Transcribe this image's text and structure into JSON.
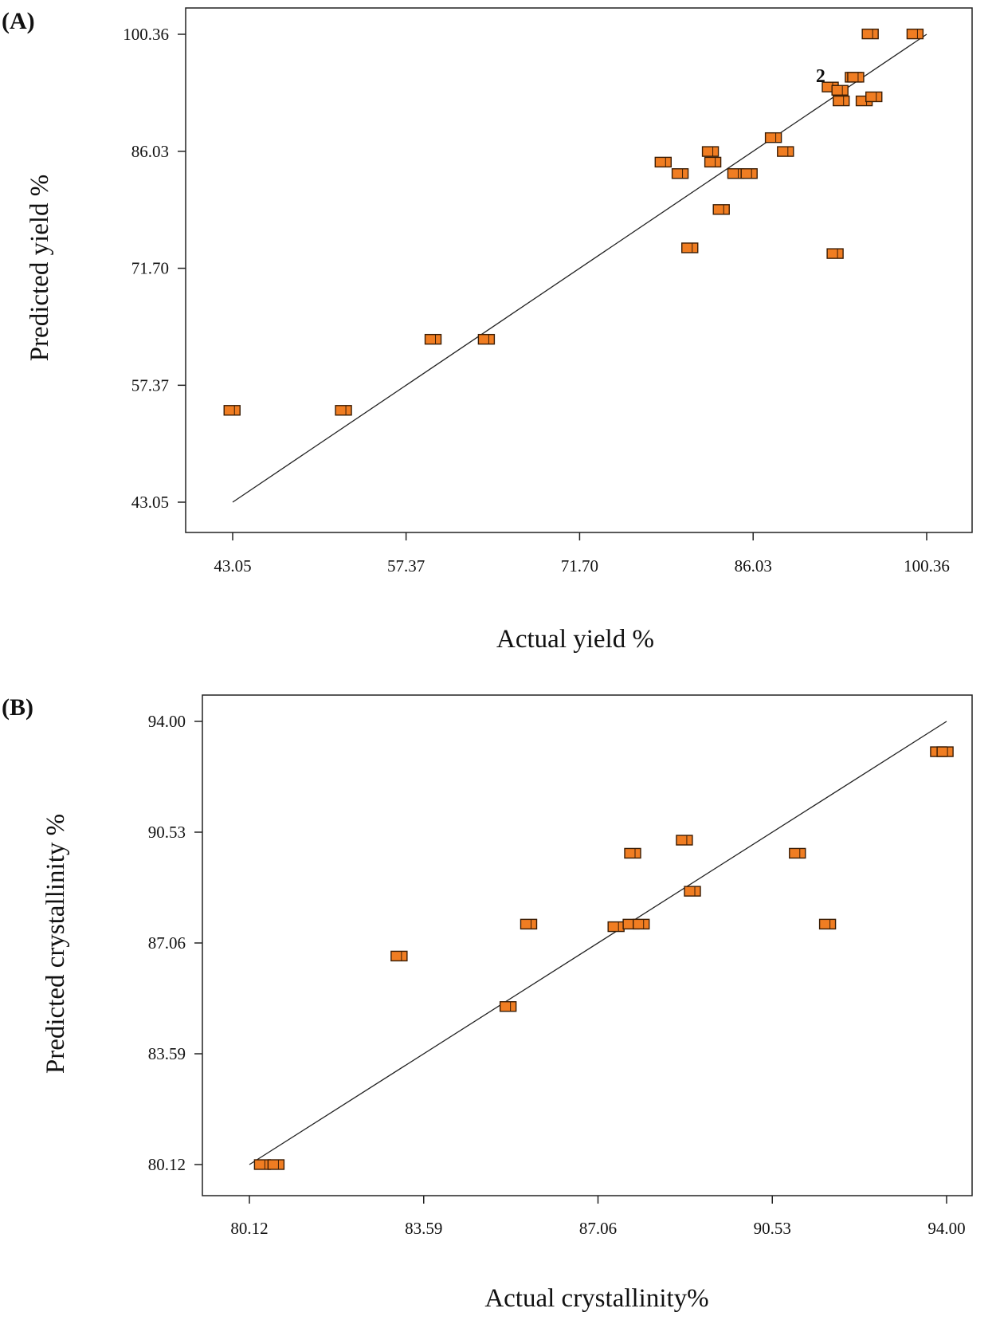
{
  "chart_data": [
    {
      "type": "scatter",
      "panel_label": "(A)",
      "xlabel": "Actual yield %",
      "ylabel": "Predicted yield %",
      "xlim": [
        43.05,
        100.36
      ],
      "ylim": [
        43.05,
        100.36
      ],
      "xticks": [
        "43.05",
        "57.37",
        "71.70",
        "86.03",
        "100.36"
      ],
      "yticks": [
        "43.05",
        "57.37",
        "71.70",
        "86.03",
        "100.36"
      ],
      "reference_line": [
        [
          43.05,
          43.05
        ],
        [
          100.36,
          100.36
        ]
      ],
      "point_color": "#f07d22",
      "points": [
        [
          43.0,
          54.3
        ],
        [
          52.2,
          54.3
        ],
        [
          59.6,
          63.0
        ],
        [
          64.0,
          63.0
        ],
        [
          78.6,
          84.7
        ],
        [
          80.0,
          83.3
        ],
        [
          80.8,
          74.2
        ],
        [
          82.5,
          86.0
        ],
        [
          82.7,
          84.7
        ],
        [
          83.4,
          78.9
        ],
        [
          84.6,
          83.3
        ],
        [
          85.7,
          83.3
        ],
        [
          87.7,
          87.7
        ],
        [
          88.7,
          86.0
        ],
        [
          92.4,
          93.9
        ],
        [
          93.2,
          93.5
        ],
        [
          92.8,
          73.5
        ],
        [
          93.3,
          92.2
        ],
        [
          94.3,
          95.1
        ],
        [
          94.5,
          95.1
        ],
        [
          95.2,
          92.2
        ],
        [
          96.0,
          92.7
        ],
        [
          95.7,
          100.4
        ],
        [
          99.4,
          100.4
        ]
      ],
      "annotations": [
        {
          "text": "2",
          "x": 91.6,
          "y": 95.3
        }
      ]
    },
    {
      "type": "scatter",
      "panel_label": "(B)",
      "xlabel": "Actual crystallinity%",
      "ylabel": "Predicted crystallinity %",
      "xlim": [
        80.12,
        94.0
      ],
      "ylim": [
        80.12,
        94.0
      ],
      "xticks": [
        "80.12",
        "83.59",
        "87.06",
        "90.53",
        "94.00"
      ],
      "yticks": [
        "80.12",
        "83.59",
        "87.06",
        "90.53",
        "94.00"
      ],
      "reference_line": [
        [
          80.12,
          80.12
        ],
        [
          94.0,
          94.0
        ]
      ],
      "point_color": "#f07d22",
      "points": [
        [
          80.38,
          80.12
        ],
        [
          80.65,
          80.12
        ],
        [
          83.1,
          86.65
        ],
        [
          85.27,
          85.07
        ],
        [
          85.68,
          87.65
        ],
        [
          87.42,
          87.57
        ],
        [
          87.72,
          87.65
        ],
        [
          87.92,
          87.65
        ],
        [
          87.75,
          89.87
        ],
        [
          88.78,
          90.28
        ],
        [
          88.94,
          88.68
        ],
        [
          91.03,
          89.87
        ],
        [
          91.63,
          87.65
        ],
        [
          93.84,
          93.05
        ],
        [
          93.97,
          93.05
        ]
      ],
      "annotations": []
    }
  ]
}
